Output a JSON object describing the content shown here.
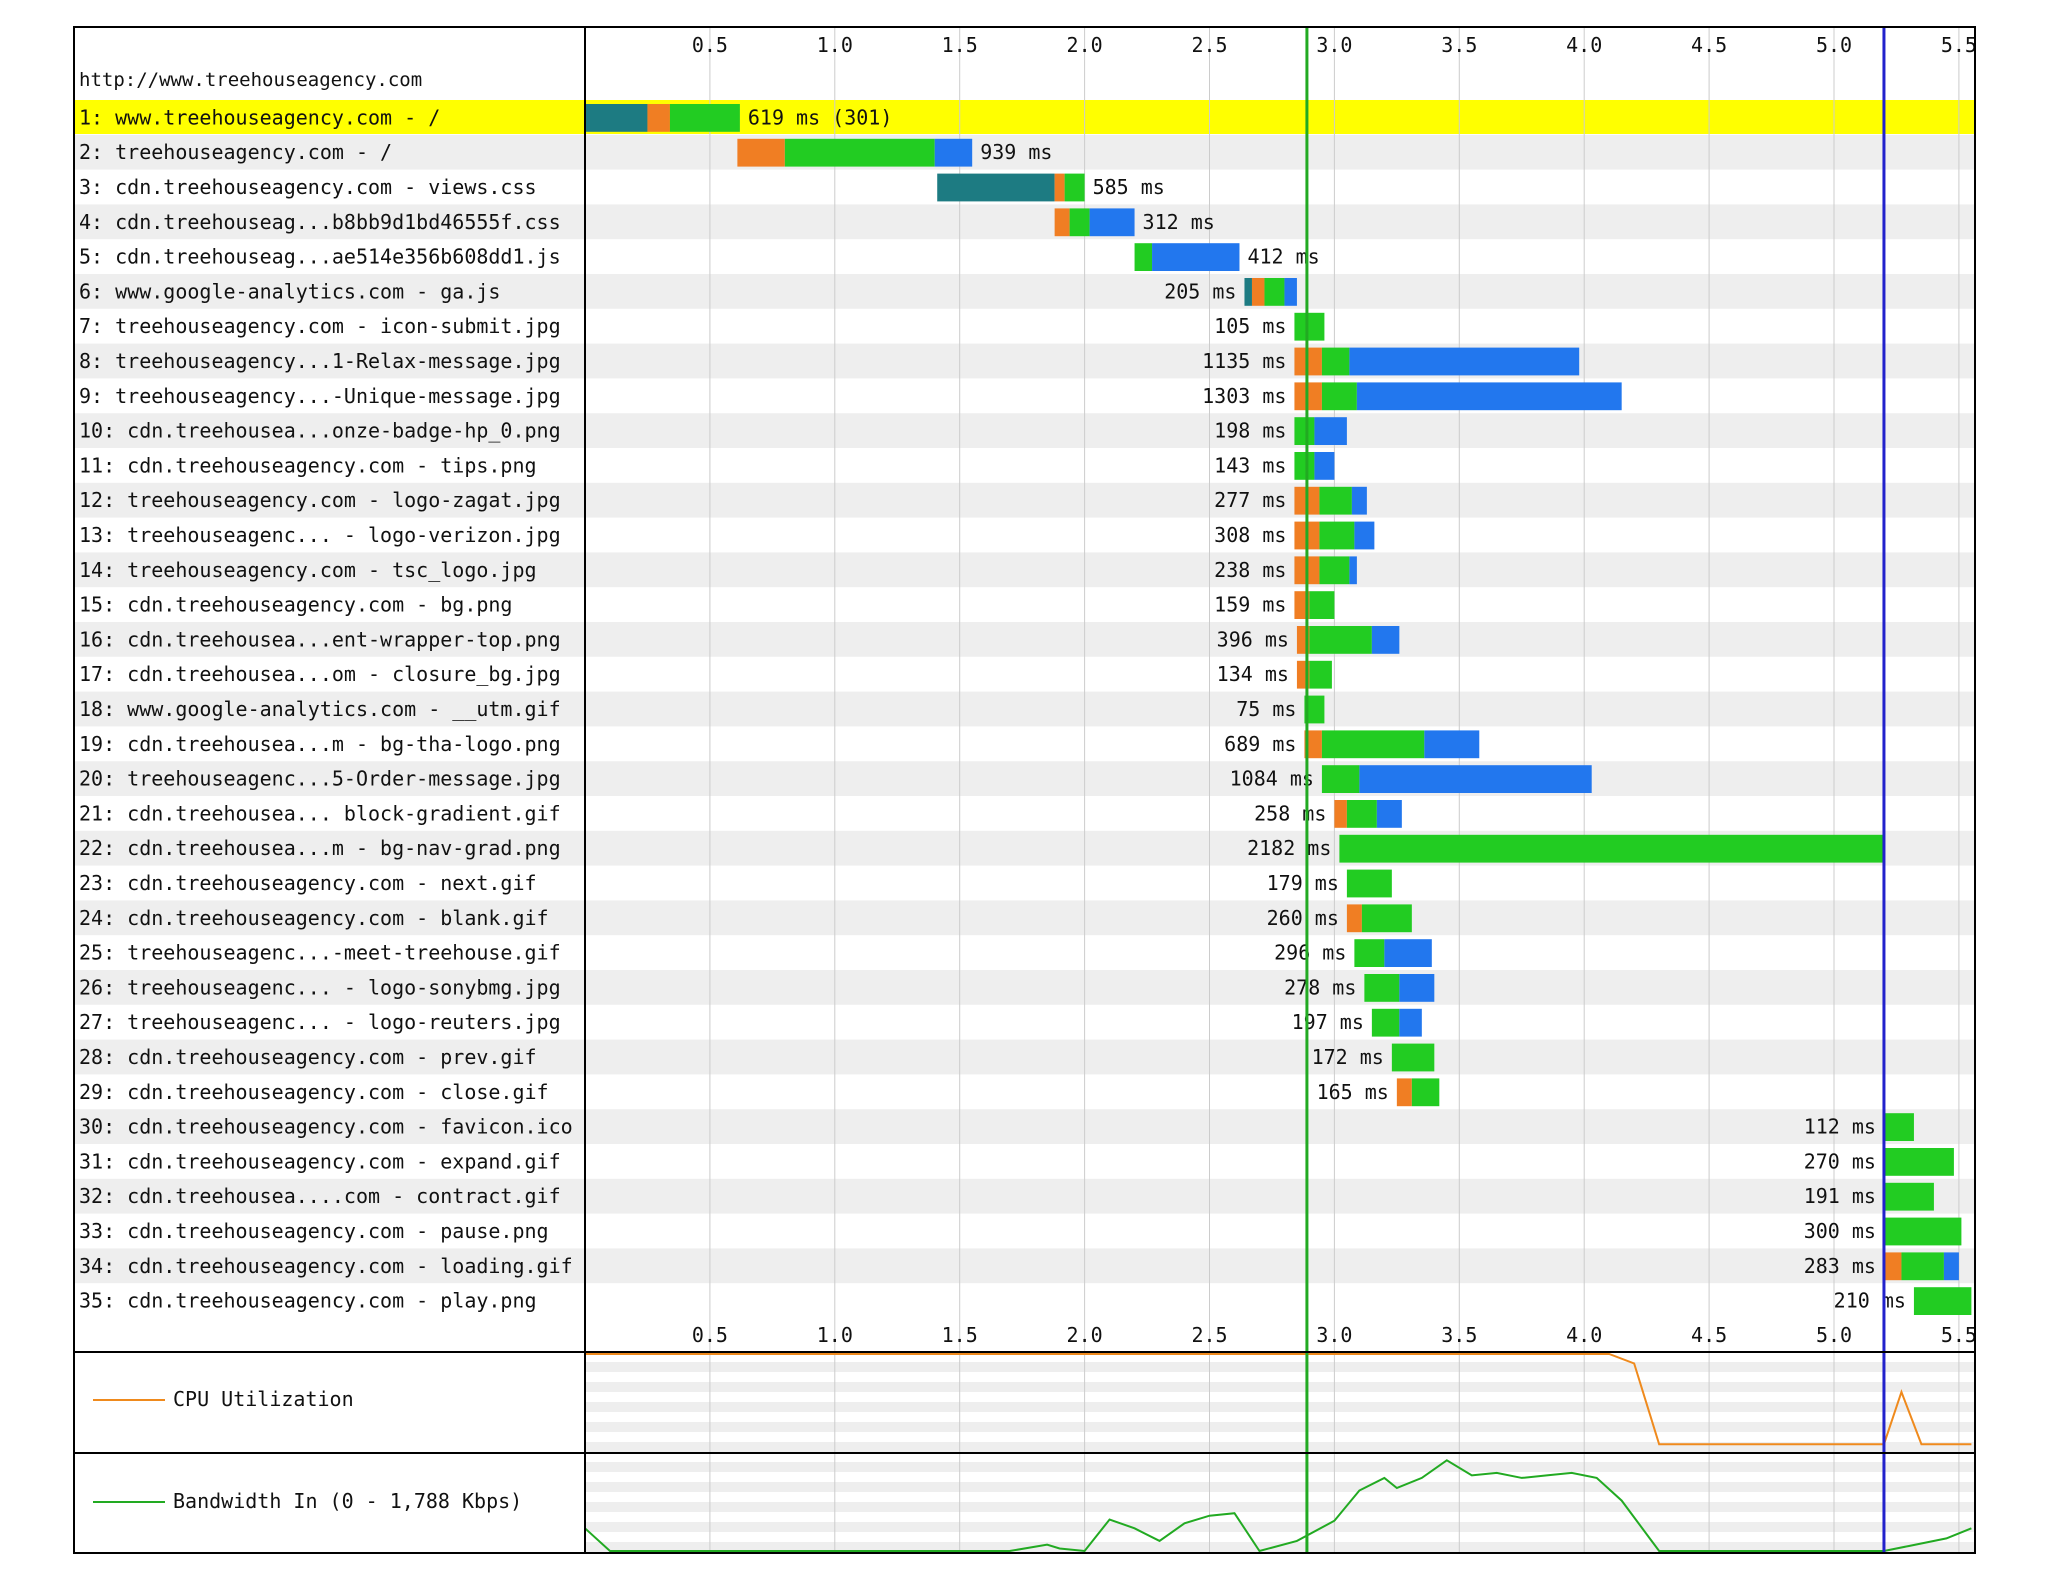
{
  "page_url": "http://www.treehouseagency.com",
  "colors": {
    "highlight": "#ffff00",
    "dns": "#1d7b82",
    "connect": "#f07e23",
    "ttfb": "#22cc22",
    "download": "#2277ee",
    "start_render_line": "#22aa22",
    "document_complete_line": "#2222cc",
    "cpu_line": "#ef8a1d",
    "bandwidth_line": "#22aa22",
    "row_stripe": "#eeeeee",
    "grid": "#cccccc"
  },
  "axis_ticks": [
    "0.5",
    "1.0",
    "1.5",
    "2.0",
    "2.5",
    "3.0",
    "3.5",
    "4.0",
    "4.5",
    "5.0",
    "5.5"
  ],
  "panels": {
    "cpu_label": "CPU Utilization",
    "bandwidth_label": "Bandwidth In (0 - 1,788 Kbps)"
  },
  "chart_data": {
    "type": "waterfall",
    "x_unit": "seconds",
    "xlim": [
      0,
      5.55
    ],
    "start_render": 2.89,
    "document_complete": 5.2,
    "requests": [
      {
        "label": "1: www.treehouseagency.com - /",
        "timing": "619 ms (301)",
        "highlight": true,
        "phases": [
          [
            "dns",
            0,
            0.25
          ],
          [
            "connect",
            0.25,
            0.34
          ],
          [
            "ttfb",
            0.34,
            0.62
          ]
        ]
      },
      {
        "label": "2: treehouseagency.com - /",
        "timing": "939 ms",
        "phases": [
          [
            "connect",
            0.61,
            0.8
          ],
          [
            "ttfb",
            0.8,
            1.4
          ],
          [
            "download",
            1.4,
            1.55
          ]
        ]
      },
      {
        "label": "3: cdn.treehouseagency.com - views.css",
        "timing": "585 ms",
        "phases": [
          [
            "dns",
            1.41,
            1.88
          ],
          [
            "connect",
            1.88,
            1.92
          ],
          [
            "ttfb",
            1.92,
            2.0
          ]
        ]
      },
      {
        "label": "4: cdn.treehouseag...b8bb9d1bd46555f.css",
        "timing": "312 ms",
        "phases": [
          [
            "connect",
            1.88,
            1.94
          ],
          [
            "ttfb",
            1.94,
            2.02
          ],
          [
            "download",
            2.02,
            2.2
          ]
        ]
      },
      {
        "label": "5: cdn.treehouseag...ae514e356b608dd1.js",
        "timing": "412 ms",
        "phases": [
          [
            "ttfb",
            2.2,
            2.27
          ],
          [
            "download",
            2.27,
            2.62
          ]
        ]
      },
      {
        "label": "6: www.google-analytics.com - ga.js",
        "timing": "205 ms",
        "phases": [
          [
            "dns",
            2.64,
            2.67
          ],
          [
            "connect",
            2.67,
            2.72
          ],
          [
            "ttfb",
            2.72,
            2.8
          ],
          [
            "download",
            2.8,
            2.85
          ]
        ]
      },
      {
        "label": "7: treehouseagency.com - icon-submit.jpg",
        "timing": "105 ms",
        "phases": [
          [
            "ttfb",
            2.84,
            2.96
          ]
        ]
      },
      {
        "label": "8: treehouseagency...1-Relax-message.jpg",
        "timing": "1135 ms",
        "phases": [
          [
            "connect",
            2.84,
            2.95
          ],
          [
            "ttfb",
            2.95,
            3.06
          ],
          [
            "download",
            3.06,
            3.98
          ]
        ]
      },
      {
        "label": "9: treehouseagency...-Unique-message.jpg",
        "timing": "1303 ms",
        "phases": [
          [
            "connect",
            2.84,
            2.95
          ],
          [
            "ttfb",
            2.95,
            3.09
          ],
          [
            "download",
            3.09,
            4.15
          ]
        ]
      },
      {
        "label": "10: cdn.treehousea...onze-badge-hp_0.png",
        "timing": "198 ms",
        "phases": [
          [
            "ttfb",
            2.84,
            2.92
          ],
          [
            "download",
            2.92,
            3.05
          ]
        ]
      },
      {
        "label": "11: cdn.treehouseagency.com - tips.png",
        "timing": "143 ms",
        "phases": [
          [
            "ttfb",
            2.84,
            2.92
          ],
          [
            "download",
            2.92,
            3.0
          ]
        ]
      },
      {
        "label": "12: treehouseagency.com - logo-zagat.jpg",
        "timing": "277 ms",
        "phases": [
          [
            "connect",
            2.84,
            2.94
          ],
          [
            "ttfb",
            2.94,
            3.07
          ],
          [
            "download",
            3.07,
            3.13
          ]
        ]
      },
      {
        "label": "13: treehouseagenc... - logo-verizon.jpg",
        "timing": "308 ms",
        "phases": [
          [
            "connect",
            2.84,
            2.94
          ],
          [
            "ttfb",
            2.94,
            3.08
          ],
          [
            "download",
            3.08,
            3.16
          ]
        ]
      },
      {
        "label": "14: treehouseagency.com - tsc_logo.jpg",
        "timing": "238 ms",
        "phases": [
          [
            "connect",
            2.84,
            2.94
          ],
          [
            "ttfb",
            2.94,
            3.06
          ],
          [
            "download",
            3.06,
            3.09
          ]
        ]
      },
      {
        "label": "15: cdn.treehouseagency.com - bg.png",
        "timing": "159 ms",
        "phases": [
          [
            "connect",
            2.84,
            2.9
          ],
          [
            "ttfb",
            2.9,
            3.0
          ]
        ]
      },
      {
        "label": "16: cdn.treehousea...ent-wrapper-top.png",
        "timing": "396 ms",
        "phases": [
          [
            "connect",
            2.85,
            2.9
          ],
          [
            "ttfb",
            2.9,
            3.15
          ],
          [
            "download",
            3.15,
            3.26
          ]
        ]
      },
      {
        "label": "17: cdn.treehousea...om - closure_bg.jpg",
        "timing": "134 ms",
        "phases": [
          [
            "connect",
            2.85,
            2.9
          ],
          [
            "ttfb",
            2.9,
            2.99
          ]
        ]
      },
      {
        "label": "18: www.google-analytics.com - __utm.gif",
        "timing": "75 ms",
        "phases": [
          [
            "ttfb",
            2.88,
            2.96
          ]
        ]
      },
      {
        "label": "19: cdn.treehousea...m - bg-tha-logo.png",
        "timing": "689 ms",
        "phases": [
          [
            "connect",
            2.88,
            2.95
          ],
          [
            "ttfb",
            2.95,
            3.36
          ],
          [
            "download",
            3.36,
            3.58
          ]
        ]
      },
      {
        "label": "20: treehouseagenc...5-Order-message.jpg",
        "timing": "1084 ms",
        "phases": [
          [
            "ttfb",
            2.95,
            3.1
          ],
          [
            "download",
            3.1,
            4.03
          ]
        ]
      },
      {
        "label": "21: cdn.treehousea... block-gradient.gif",
        "timing": "258 ms",
        "phases": [
          [
            "connect",
            3.0,
            3.05
          ],
          [
            "ttfb",
            3.05,
            3.17
          ],
          [
            "download",
            3.17,
            3.27
          ]
        ]
      },
      {
        "label": "22: cdn.treehousea...m - bg-nav-grad.png",
        "timing": "2182 ms",
        "phases": [
          [
            "ttfb",
            3.02,
            5.2
          ]
        ]
      },
      {
        "label": "23: cdn.treehouseagency.com - next.gif",
        "timing": "179 ms",
        "phases": [
          [
            "ttfb",
            3.05,
            3.23
          ]
        ]
      },
      {
        "label": "24: cdn.treehouseagency.com - blank.gif",
        "timing": "260 ms",
        "phases": [
          [
            "connect",
            3.05,
            3.11
          ],
          [
            "ttfb",
            3.11,
            3.31
          ]
        ]
      },
      {
        "label": "25: treehouseagenc...-meet-treehouse.gif",
        "timing": "296 ms",
        "phases": [
          [
            "ttfb",
            3.08,
            3.2
          ],
          [
            "download",
            3.2,
            3.39
          ]
        ]
      },
      {
        "label": "26: treehouseagenc... - logo-sonybmg.jpg",
        "timing": "278 ms",
        "phases": [
          [
            "ttfb",
            3.12,
            3.26
          ],
          [
            "download",
            3.26,
            3.4
          ]
        ]
      },
      {
        "label": "27: treehouseagenc... - logo-reuters.jpg",
        "timing": "197 ms",
        "phases": [
          [
            "ttfb",
            3.15,
            3.26
          ],
          [
            "download",
            3.26,
            3.35
          ]
        ]
      },
      {
        "label": "28: cdn.treehouseagency.com - prev.gif",
        "timing": "172 ms",
        "phases": [
          [
            "ttfb",
            3.23,
            3.4
          ]
        ]
      },
      {
        "label": "29: cdn.treehouseagency.com - close.gif",
        "timing": "165 ms",
        "phases": [
          [
            "connect",
            3.25,
            3.31
          ],
          [
            "ttfb",
            3.31,
            3.42
          ]
        ]
      },
      {
        "label": "30: cdn.treehouseagency.com - favicon.ico",
        "timing": "112 ms",
        "phases": [
          [
            "ttfb",
            5.2,
            5.32
          ]
        ]
      },
      {
        "label": "31: cdn.treehouseagency.com - expand.gif",
        "timing": "270 ms",
        "phases": [
          [
            "ttfb",
            5.2,
            5.48
          ]
        ]
      },
      {
        "label": "32: cdn.treehousea....com - contract.gif",
        "timing": "191 ms",
        "phases": [
          [
            "ttfb",
            5.2,
            5.4
          ]
        ]
      },
      {
        "label": "33: cdn.treehouseagency.com - pause.png",
        "timing": "300 ms",
        "phases": [
          [
            "ttfb",
            5.2,
            5.51
          ]
        ]
      },
      {
        "label": "34: cdn.treehouseagency.com - loading.gif",
        "timing": "283 ms",
        "phases": [
          [
            "connect",
            5.2,
            5.27
          ],
          [
            "ttfb",
            5.27,
            5.44
          ],
          [
            "download",
            5.44,
            5.5
          ]
        ]
      },
      {
        "label": "35: cdn.treehouseagency.com - play.png",
        "timing": "210 ms",
        "phases": [
          [
            "ttfb",
            5.32,
            5.55
          ]
        ]
      }
    ],
    "cpu_series": [
      [
        0,
        100
      ],
      [
        4.1,
        100
      ],
      [
        4.2,
        90
      ],
      [
        4.3,
        5
      ],
      [
        5.2,
        5
      ],
      [
        5.27,
        60
      ],
      [
        5.35,
        5
      ],
      [
        5.55,
        5
      ]
    ],
    "bandwidth_series": [
      [
        0,
        18
      ],
      [
        0.1,
        0
      ],
      [
        1.7,
        0
      ],
      [
        1.85,
        5
      ],
      [
        1.9,
        2
      ],
      [
        2.0,
        0
      ],
      [
        2.1,
        25
      ],
      [
        2.2,
        18
      ],
      [
        2.3,
        8
      ],
      [
        2.4,
        22
      ],
      [
        2.5,
        28
      ],
      [
        2.6,
        30
      ],
      [
        2.7,
        0
      ],
      [
        2.85,
        8
      ],
      [
        3.0,
        24
      ],
      [
        3.1,
        48
      ],
      [
        3.2,
        58
      ],
      [
        3.25,
        50
      ],
      [
        3.35,
        58
      ],
      [
        3.45,
        72
      ],
      [
        3.55,
        60
      ],
      [
        3.65,
        62
      ],
      [
        3.75,
        58
      ],
      [
        3.85,
        60
      ],
      [
        3.95,
        62
      ],
      [
        4.05,
        58
      ],
      [
        4.15,
        40
      ],
      [
        4.3,
        0
      ],
      [
        5.2,
        0
      ],
      [
        5.3,
        4
      ],
      [
        5.45,
        10
      ],
      [
        5.55,
        18
      ]
    ]
  }
}
